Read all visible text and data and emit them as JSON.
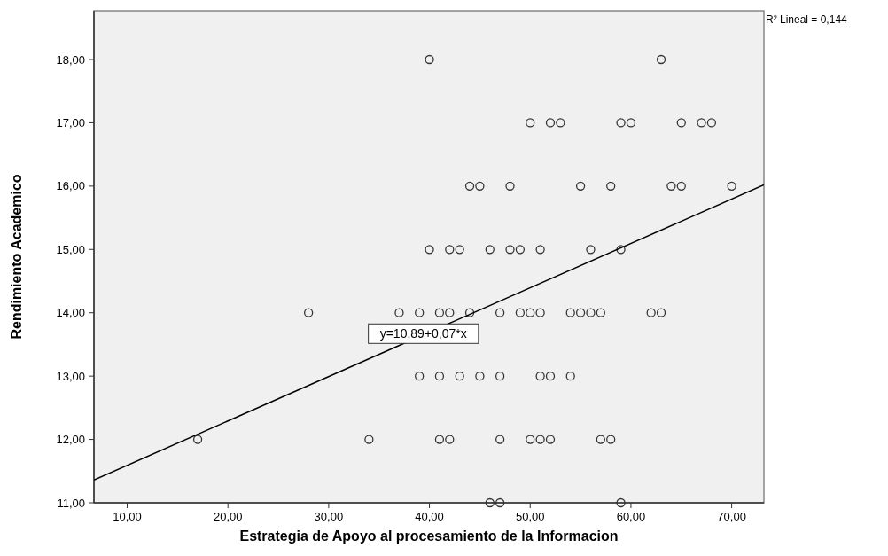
{
  "chart_data": {
    "type": "scatter",
    "xlabel": "Estrategia de Apoyo al procesamiento de la Informacion",
    "ylabel": "Rendimiento Academico",
    "xlim": [
      6.7,
      73.2
    ],
    "ylim": [
      11,
      18.77
    ],
    "xticks": [
      {
        "value": 10,
        "label": "10,00"
      },
      {
        "value": 20,
        "label": "20,00"
      },
      {
        "value": 30,
        "label": "30,00"
      },
      {
        "value": 40,
        "label": "40,00"
      },
      {
        "value": 50,
        "label": "50,00"
      },
      {
        "value": 60,
        "label": "60,00"
      },
      {
        "value": 70,
        "label": "70,00"
      }
    ],
    "yticks": [
      {
        "value": 11,
        "label": "11,00"
      },
      {
        "value": 12,
        "label": "12,00"
      },
      {
        "value": 13,
        "label": "13,00"
      },
      {
        "value": 14,
        "label": "14,00"
      },
      {
        "value": 15,
        "label": "15,00"
      },
      {
        "value": 16,
        "label": "16,00"
      },
      {
        "value": 17,
        "label": "17,00"
      },
      {
        "value": 18,
        "label": "18,00"
      }
    ],
    "grid": false,
    "marker": "circle",
    "series": [
      {
        "color": "#333333",
        "x": [
          40,
          63,
          50,
          52,
          53,
          59,
          60,
          65,
          67,
          68,
          44,
          45,
          48,
          55,
          58,
          64,
          65,
          70,
          40,
          42,
          43,
          46,
          48,
          49,
          51,
          56,
          59,
          28,
          37,
          39,
          41,
          42,
          44,
          47,
          49,
          50,
          51,
          54,
          55,
          56,
          57,
          62,
          63,
          39,
          41,
          43,
          45,
          47,
          51,
          52,
          54,
          17,
          34,
          41,
          42,
          47,
          50,
          51,
          52,
          57,
          58,
          46,
          47,
          59
        ],
        "values": [
          18,
          18,
          17,
          17,
          17,
          17,
          17,
          17,
          17,
          17,
          16,
          16,
          16,
          16,
          16,
          16,
          16,
          16,
          15,
          15,
          15,
          15,
          15,
          15,
          15,
          15,
          15,
          14,
          14,
          14,
          14,
          14,
          14,
          14,
          14,
          14,
          14,
          14,
          14,
          14,
          14,
          14,
          14,
          13,
          13,
          13,
          13,
          13,
          13,
          13,
          13,
          12,
          12,
          12,
          12,
          12,
          12,
          12,
          12,
          12,
          12,
          11,
          11,
          11
        ]
      },
      {
        "type": "line",
        "color": "#000000",
        "line_style": "solid",
        "marker": "none",
        "x": [
          6.7,
          73.2
        ],
        "values": [
          11.36,
          16.02
        ]
      }
    ],
    "annotations": [
      "R² Lineal = 0,144",
      {
        "text": "y=10,89+0,07*x",
        "x": 39.4,
        "y": 13.67
      }
    ]
  }
}
